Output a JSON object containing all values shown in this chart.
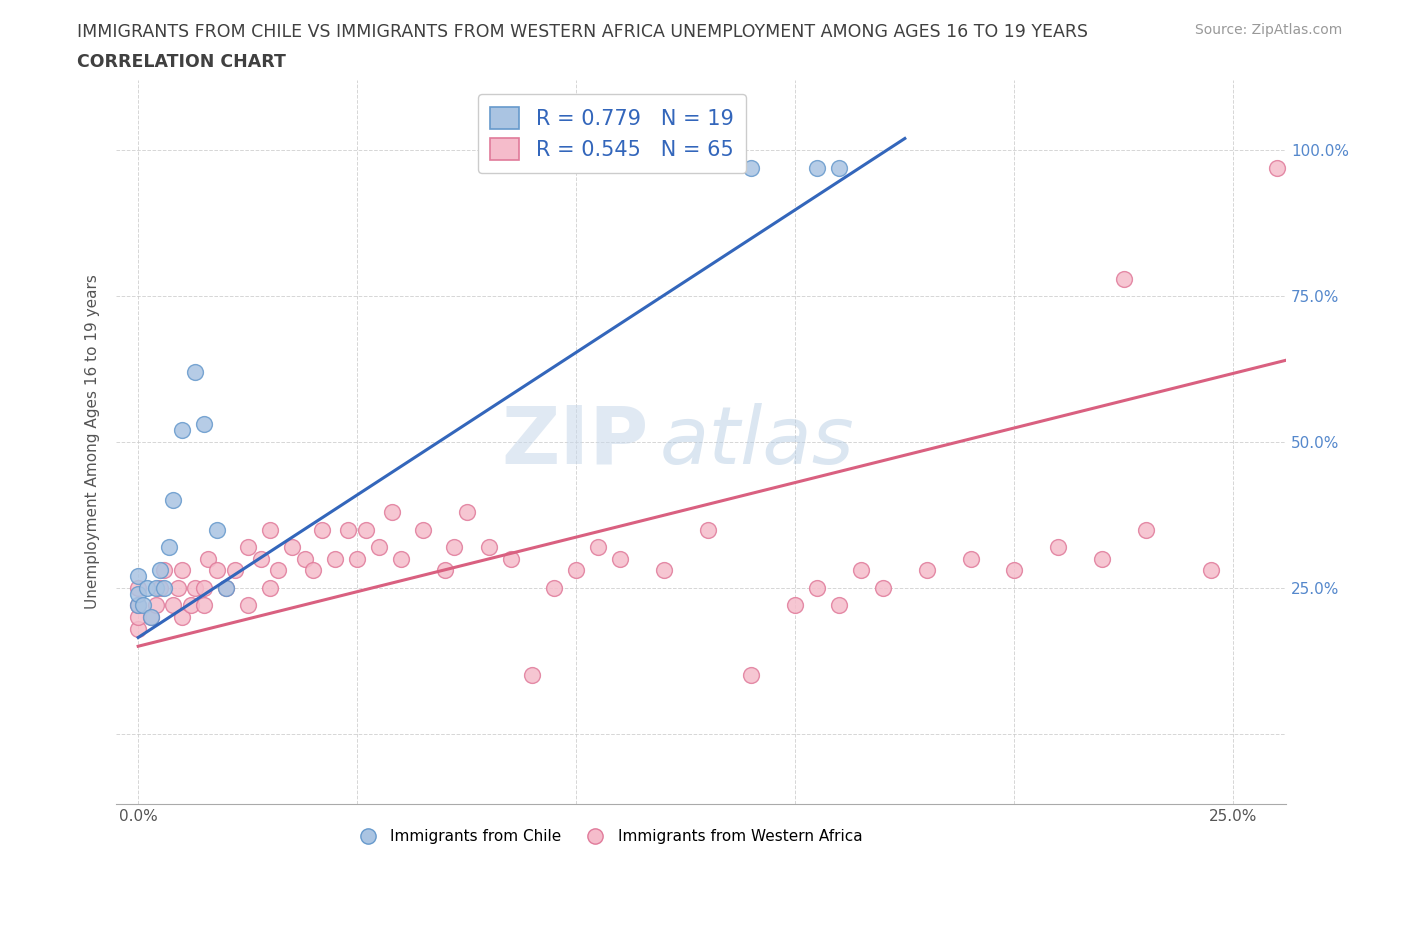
{
  "title_line1": "IMMIGRANTS FROM CHILE VS IMMIGRANTS FROM WESTERN AFRICA UNEMPLOYMENT AMONG AGES 16 TO 19 YEARS",
  "title_line2": "CORRELATION CHART",
  "source": "Source: ZipAtlas.com",
  "ylabel": "Unemployment Among Ages 16 to 19 years",
  "x_ticks": [
    0.0,
    0.05,
    0.1,
    0.15,
    0.2,
    0.25
  ],
  "x_tick_labels": [
    "0.0%",
    "",
    "",
    "",
    "",
    "25.0%"
  ],
  "y_ticks": [
    0.0,
    0.25,
    0.5,
    0.75,
    1.0
  ],
  "y_tick_labels_right": [
    "25.0%",
    "50.0%",
    "75.0%",
    "100.0%"
  ],
  "y_ticks_right": [
    0.25,
    0.5,
    0.75,
    1.0
  ],
  "xlim": [
    -0.005,
    0.262
  ],
  "ylim": [
    -0.12,
    1.12
  ],
  "chile_color": "#aac4e2",
  "chile_edge_color": "#6699cc",
  "wa_color": "#f5bccb",
  "wa_edge_color": "#e07a9a",
  "chile_line_color": "#3366bb",
  "wa_line_color": "#d96080",
  "chile_R": 0.779,
  "chile_N": 19,
  "wa_R": 0.545,
  "wa_N": 65,
  "legend_label_chile": "Immigrants from Chile",
  "legend_label_wa": "Immigrants from Western Africa",
  "watermark_zip": "ZIP",
  "watermark_atlas": "atlas",
  "title_color": "#404040",
  "title_fontsize": 12.5,
  "subtitle_fontsize": 12.5,
  "axis_label_fontsize": 11,
  "tick_fontsize": 11,
  "legend_fontsize": 15,
  "source_fontsize": 10,
  "grid_color": "#cccccc",
  "right_tick_color": "#5588cc",
  "chile_points_x": [
    0.0,
    0.0,
    0.0,
    0.001,
    0.002,
    0.003,
    0.004,
    0.005,
    0.006,
    0.007,
    0.008,
    0.01,
    0.013,
    0.015,
    0.018,
    0.02,
    0.14,
    0.155,
    0.16
  ],
  "chile_points_y": [
    0.22,
    0.24,
    0.27,
    0.22,
    0.25,
    0.2,
    0.25,
    0.28,
    0.25,
    0.32,
    0.4,
    0.52,
    0.62,
    0.53,
    0.35,
    0.25,
    0.97,
    0.97,
    0.97
  ],
  "wa_points_x": [
    0.0,
    0.0,
    0.0,
    0.0,
    0.003,
    0.004,
    0.005,
    0.006,
    0.008,
    0.009,
    0.01,
    0.01,
    0.012,
    0.013,
    0.015,
    0.015,
    0.016,
    0.018,
    0.02,
    0.022,
    0.025,
    0.025,
    0.028,
    0.03,
    0.03,
    0.032,
    0.035,
    0.038,
    0.04,
    0.042,
    0.045,
    0.048,
    0.05,
    0.052,
    0.055,
    0.058,
    0.06,
    0.065,
    0.07,
    0.072,
    0.075,
    0.08,
    0.085,
    0.09,
    0.095,
    0.1,
    0.105,
    0.11,
    0.12,
    0.13,
    0.14,
    0.15,
    0.155,
    0.16,
    0.165,
    0.17,
    0.18,
    0.19,
    0.2,
    0.21,
    0.22,
    0.225,
    0.23,
    0.245,
    0.26
  ],
  "wa_points_y": [
    0.18,
    0.2,
    0.22,
    0.25,
    0.2,
    0.22,
    0.25,
    0.28,
    0.22,
    0.25,
    0.2,
    0.28,
    0.22,
    0.25,
    0.22,
    0.25,
    0.3,
    0.28,
    0.25,
    0.28,
    0.22,
    0.32,
    0.3,
    0.25,
    0.35,
    0.28,
    0.32,
    0.3,
    0.28,
    0.35,
    0.3,
    0.35,
    0.3,
    0.35,
    0.32,
    0.38,
    0.3,
    0.35,
    0.28,
    0.32,
    0.38,
    0.32,
    0.3,
    0.1,
    0.25,
    0.28,
    0.32,
    0.3,
    0.28,
    0.35,
    0.1,
    0.22,
    0.25,
    0.22,
    0.28,
    0.25,
    0.28,
    0.3,
    0.28,
    0.32,
    0.3,
    0.78,
    0.35,
    0.28,
    0.97
  ],
  "chile_trend_x": [
    0.0,
    0.175
  ],
  "chile_trend_y": [
    0.165,
    1.02
  ],
  "wa_trend_x": [
    0.0,
    0.262
  ],
  "wa_trend_y": [
    0.15,
    0.64
  ]
}
